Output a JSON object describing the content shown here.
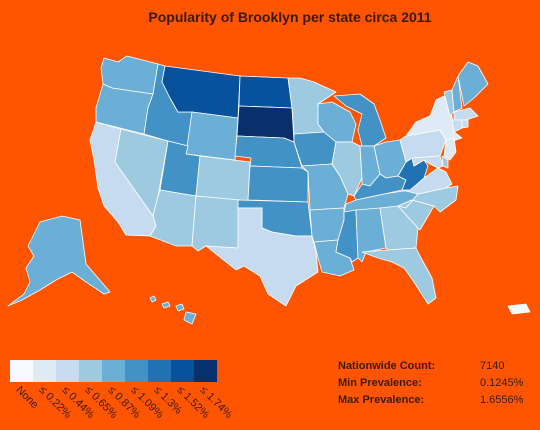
{
  "title": "Popularity of Brooklyn per state circa 2011",
  "legend": {
    "colors": [
      "#f7fbff",
      "#deebf7",
      "#c6dbef",
      "#9ecae1",
      "#6baed6",
      "#4292c6",
      "#2171b5",
      "#08519c",
      "#08306b"
    ],
    "labels": [
      "None",
      "≤ 0.22%",
      "≤ 0.44%",
      "≤ 0.65%",
      "≤ 0.87%",
      "≤ 1.09%",
      "≤ 1.3%",
      "≤ 1.52%",
      "≤ 1.74%"
    ]
  },
  "stats": [
    {
      "label": "Nationwide Count:",
      "value": "7140"
    },
    {
      "label": "Min Prevalence:",
      "value": "0.1245%"
    },
    {
      "label": "Max Prevalence:",
      "value": "1.6556%"
    }
  ],
  "states": [
    {
      "id": "WA",
      "bin": 4
    },
    {
      "id": "OR",
      "bin": 4
    },
    {
      "id": "CA",
      "bin": 2
    },
    {
      "id": "NV",
      "bin": 3
    },
    {
      "id": "ID",
      "bin": 5
    },
    {
      "id": "MT",
      "bin": 7
    },
    {
      "id": "WY",
      "bin": 4
    },
    {
      "id": "UT",
      "bin": 5
    },
    {
      "id": "AZ",
      "bin": 3
    },
    {
      "id": "CO",
      "bin": 3
    },
    {
      "id": "NM",
      "bin": 3
    },
    {
      "id": "ND",
      "bin": 7
    },
    {
      "id": "SD",
      "bin": 8
    },
    {
      "id": "NE",
      "bin": 5
    },
    {
      "id": "KS",
      "bin": 5
    },
    {
      "id": "OK",
      "bin": 5
    },
    {
      "id": "TX",
      "bin": 2
    },
    {
      "id": "MN",
      "bin": 3
    },
    {
      "id": "IA",
      "bin": 5
    },
    {
      "id": "MO",
      "bin": 4
    },
    {
      "id": "AR",
      "bin": 4
    },
    {
      "id": "LA",
      "bin": 4
    },
    {
      "id": "WI",
      "bin": 4
    },
    {
      "id": "IL",
      "bin": 3
    },
    {
      "id": "MI",
      "bin": 5
    },
    {
      "id": "IN",
      "bin": 4
    },
    {
      "id": "OH",
      "bin": 4
    },
    {
      "id": "KY",
      "bin": 5
    },
    {
      "id": "TN",
      "bin": 4
    },
    {
      "id": "MS",
      "bin": 5
    },
    {
      "id": "AL",
      "bin": 4
    },
    {
      "id": "GA",
      "bin": 3
    },
    {
      "id": "FL",
      "bin": 3
    },
    {
      "id": "SC",
      "bin": 3
    },
    {
      "id": "NC",
      "bin": 3
    },
    {
      "id": "VA",
      "bin": 2
    },
    {
      "id": "WV",
      "bin": 6
    },
    {
      "id": "PA",
      "bin": 2
    },
    {
      "id": "NY",
      "bin": 1
    },
    {
      "id": "VT",
      "bin": 3
    },
    {
      "id": "NH",
      "bin": 4
    },
    {
      "id": "ME",
      "bin": 4
    },
    {
      "id": "MA",
      "bin": 2
    },
    {
      "id": "CT",
      "bin": 2
    },
    {
      "id": "RI",
      "bin": 2
    },
    {
      "id": "NJ",
      "bin": 1
    },
    {
      "id": "DE",
      "bin": 3
    },
    {
      "id": "MD",
      "bin": 2
    },
    {
      "id": "AK",
      "bin": 4
    },
    {
      "id": "HI",
      "bin": 4
    },
    {
      "id": "PR",
      "bin": 0
    }
  ]
}
